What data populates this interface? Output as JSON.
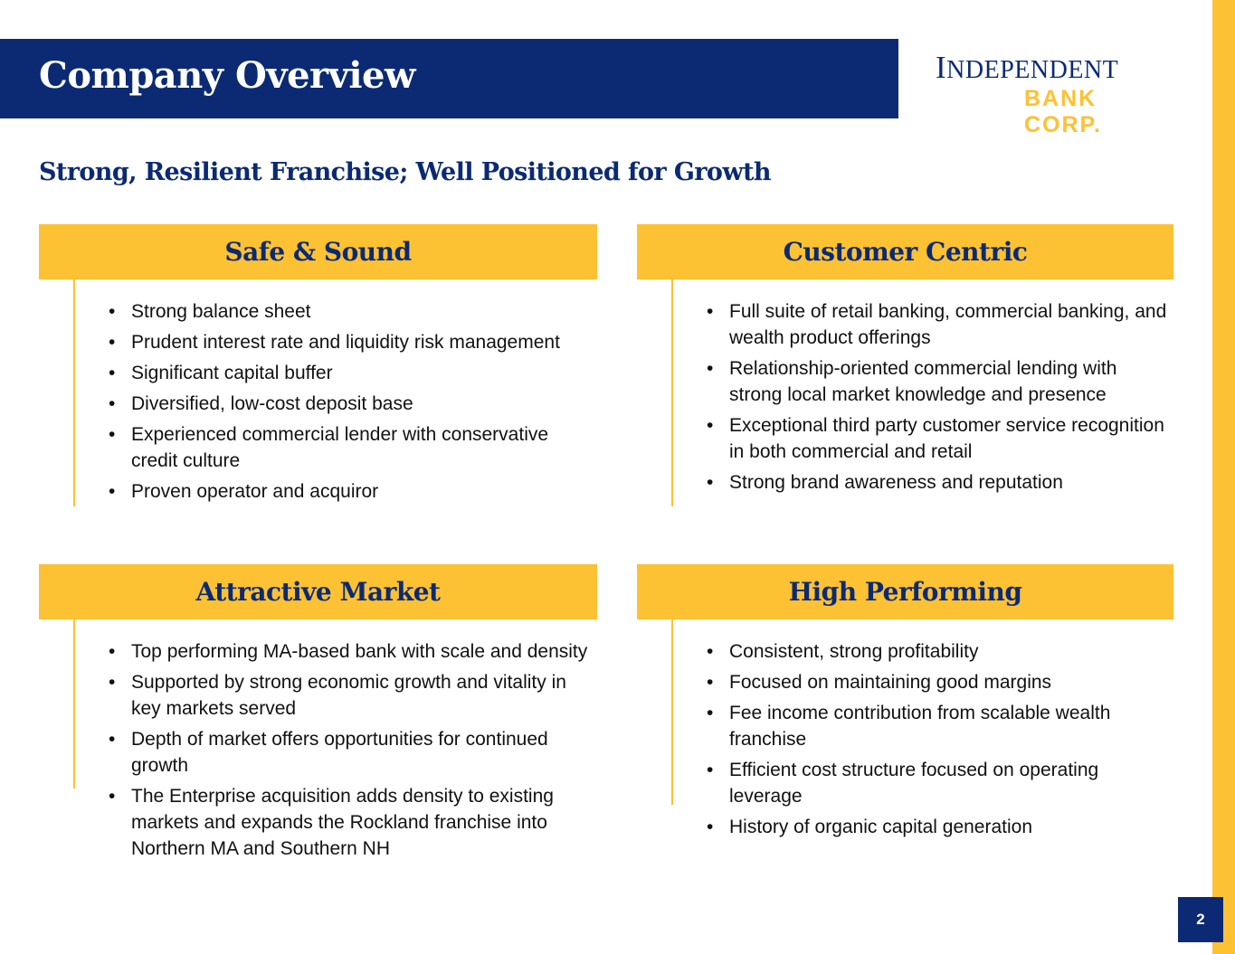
{
  "header": {
    "title": "Company Overview"
  },
  "logo": {
    "line1": "Independent",
    "line2": "BANK CORP."
  },
  "subtitle": "Strong, Resilient Franchise; Well Positioned for Growth",
  "page_number": "2",
  "sections": [
    {
      "title": "Safe & Sound",
      "bullets": [
        "Strong balance sheet",
        "Prudent interest rate and liquidity risk management",
        "Significant capital buffer",
        "Diversified, low-cost deposit base",
        "Experienced commercial lender with conservative credit culture",
        "Proven operator and acquiror"
      ]
    },
    {
      "title": "Customer Centric",
      "bullets": [
        "Full suite of retail banking, commercial banking, and wealth product offerings",
        "Relationship-oriented commercial lending with strong local market knowledge and presence",
        "Exceptional third party customer service recognition in both commercial and retail",
        "Strong brand awareness and reputation"
      ]
    },
    {
      "title": "Attractive Market",
      "bullets": [
        "Top performing MA-based bank with scale and density",
        "Supported by strong economic growth and vitality in key markets served",
        "Depth of market offers opportunities for continued growth",
        "The Enterprise acquisition adds density to existing markets and expands the Rockland franchise into Northern MA and Southern NH"
      ]
    },
    {
      "title": "High Performing",
      "bullets": [
        "Consistent, strong profitability",
        "Focused on maintaining good margins",
        "Fee income contribution from scalable wealth franchise",
        "Efficient cost structure focused on operating leverage",
        "History of organic capital generation"
      ]
    }
  ],
  "colors": {
    "navy": "#0B2A73",
    "gold": "#FDC134"
  }
}
